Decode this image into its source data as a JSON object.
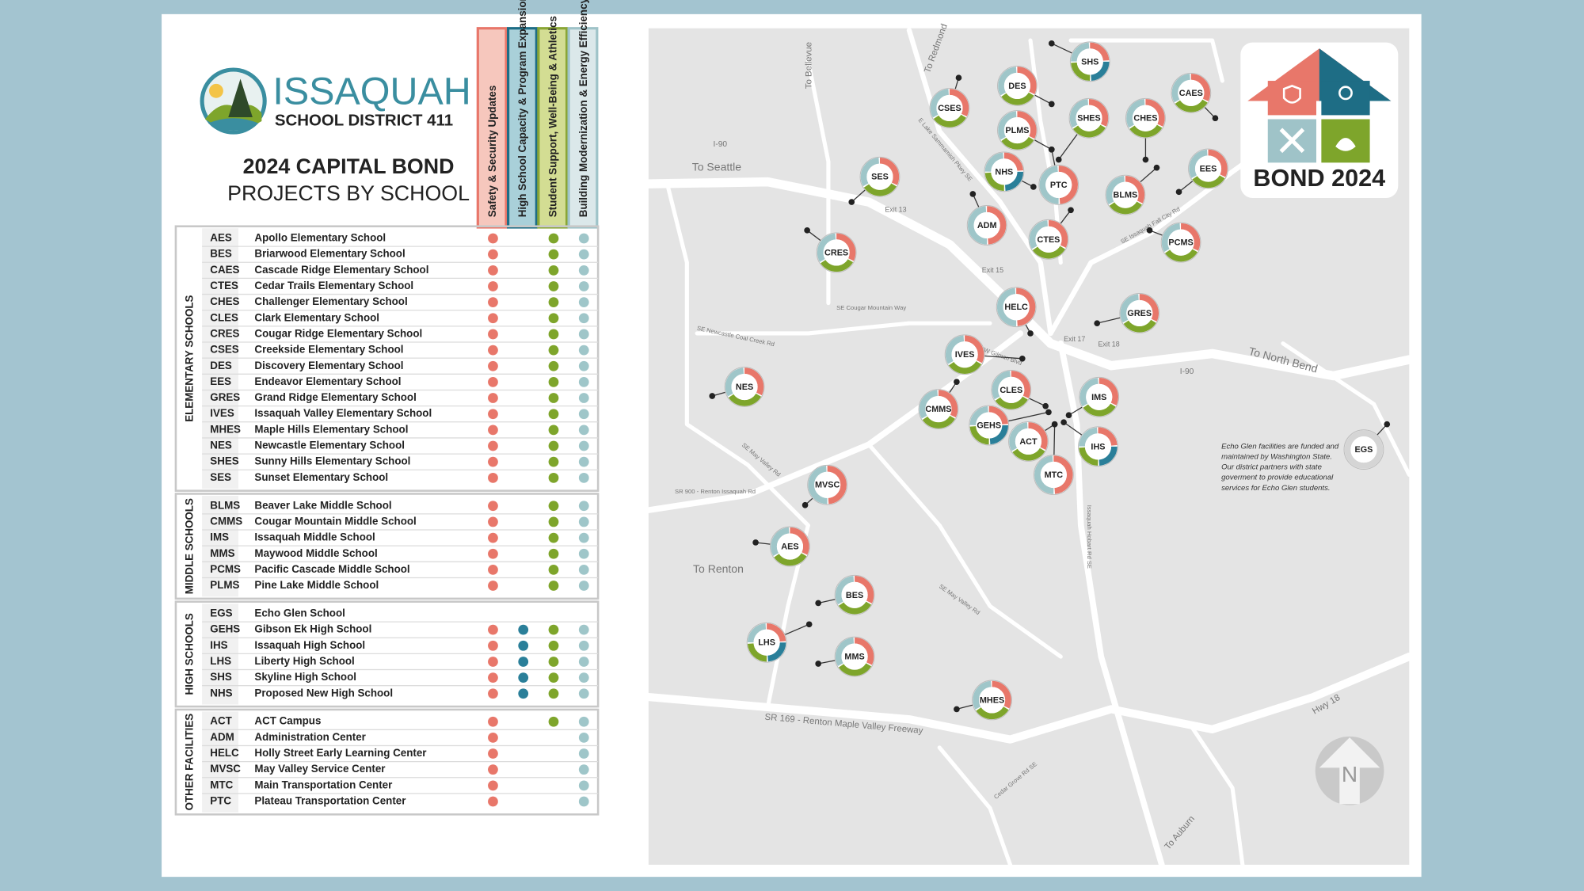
{
  "header": {
    "district": "ISSAQUAH",
    "subtitle": "SCHOOL DISTRICT 411",
    "title": "2024 CAPITAL BOND",
    "title2": "PROJECTS BY SCHOOL"
  },
  "table": {
    "columns": [
      "Safety & Security Updates",
      "High School Capacity & Program Expansion",
      "Student Support, Well-Being & Athletics",
      "Building Modernization & Energy Efficiency"
    ],
    "groups": [
      {
        "label": "ELEMENTARY SCHOOLS",
        "rows": [
          {
            "code": "AES",
            "name": "Apollo Elementary School",
            "projects": [
              true,
              false,
              true,
              true
            ]
          },
          {
            "code": "BES",
            "name": "Briarwood Elementary School",
            "projects": [
              true,
              false,
              true,
              true
            ]
          },
          {
            "code": "CAES",
            "name": "Cascade Ridge Elementary School",
            "projects": [
              true,
              false,
              true,
              true
            ]
          },
          {
            "code": "CTES",
            "name": "Cedar Trails Elementary School",
            "projects": [
              true,
              false,
              true,
              true
            ]
          },
          {
            "code": "CHES",
            "name": "Challenger Elementary School",
            "projects": [
              true,
              false,
              true,
              true
            ]
          },
          {
            "code": "CLES",
            "name": "Clark Elementary School",
            "projects": [
              true,
              false,
              true,
              true
            ]
          },
          {
            "code": "CRES",
            "name": "Cougar Ridge Elementary School",
            "projects": [
              true,
              false,
              true,
              true
            ]
          },
          {
            "code": "CSES",
            "name": "Creekside Elementary School",
            "projects": [
              true,
              false,
              true,
              true
            ]
          },
          {
            "code": "DES",
            "name": "Discovery Elementary School",
            "projects": [
              true,
              false,
              true,
              true
            ]
          },
          {
            "code": "EES",
            "name": "Endeavor Elementary School",
            "projects": [
              true,
              false,
              true,
              true
            ]
          },
          {
            "code": "GRES",
            "name": "Grand Ridge Elementary School",
            "projects": [
              true,
              false,
              true,
              true
            ]
          },
          {
            "code": "IVES",
            "name": "Issaquah Valley Elementary School",
            "projects": [
              true,
              false,
              true,
              true
            ]
          },
          {
            "code": "MHES",
            "name": "Maple Hills Elementary School",
            "projects": [
              true,
              false,
              true,
              true
            ]
          },
          {
            "code": "NES",
            "name": "Newcastle Elementary School",
            "projects": [
              true,
              false,
              true,
              true
            ]
          },
          {
            "code": "SHES",
            "name": "Sunny Hills Elementary School",
            "projects": [
              true,
              false,
              true,
              true
            ]
          },
          {
            "code": "SES",
            "name": "Sunset Elementary School",
            "projects": [
              true,
              false,
              true,
              true
            ]
          }
        ]
      },
      {
        "label": "MIDDLE SCHOOLS",
        "rows": [
          {
            "code": "BLMS",
            "name": "Beaver Lake Middle School",
            "projects": [
              true,
              false,
              true,
              true
            ]
          },
          {
            "code": "CMMS",
            "name": "Cougar Mountain Middle School",
            "projects": [
              true,
              false,
              true,
              true
            ]
          },
          {
            "code": "IMS",
            "name": "Issaquah Middle School",
            "projects": [
              true,
              false,
              true,
              true
            ]
          },
          {
            "code": "MMS",
            "name": "Maywood Middle School",
            "projects": [
              true,
              false,
              true,
              true
            ]
          },
          {
            "code": "PCMS",
            "name": "Pacific Cascade Middle School",
            "projects": [
              true,
              false,
              true,
              true
            ]
          },
          {
            "code": "PLMS",
            "name": "Pine Lake Middle School",
            "projects": [
              true,
              false,
              true,
              true
            ]
          }
        ]
      },
      {
        "label": "HIGH SCHOOLS",
        "rows": [
          {
            "code": "EGS",
            "name": "Echo Glen School",
            "projects": [
              false,
              false,
              false,
              false
            ]
          },
          {
            "code": "GEHS",
            "name": "Gibson Ek High School",
            "projects": [
              true,
              true,
              true,
              true
            ]
          },
          {
            "code": "IHS",
            "name": "Issaquah High School",
            "projects": [
              true,
              true,
              true,
              true
            ]
          },
          {
            "code": "LHS",
            "name": "Liberty High School",
            "projects": [
              true,
              true,
              true,
              true
            ]
          },
          {
            "code": "SHS",
            "name": "Skyline High School",
            "projects": [
              true,
              true,
              true,
              true
            ]
          },
          {
            "code": "NHS",
            "name": "Proposed New High School",
            "projects": [
              true,
              true,
              true,
              true
            ]
          }
        ]
      },
      {
        "label": "OTHER FACILITIES",
        "rows": [
          {
            "code": "ACT",
            "name": "ACT Campus",
            "projects": [
              true,
              false,
              true,
              true
            ]
          },
          {
            "code": "ADM",
            "name": "Administration Center",
            "projects": [
              true,
              false,
              false,
              true
            ]
          },
          {
            "code": "HELC",
            "name": "Holly Street Early Learning Center",
            "projects": [
              true,
              false,
              false,
              true
            ]
          },
          {
            "code": "MVSC",
            "name": "May Valley Service Center",
            "projects": [
              true,
              false,
              false,
              true
            ]
          },
          {
            "code": "MTC",
            "name": "Main Transportation Center",
            "projects": [
              true,
              false,
              false,
              true
            ]
          },
          {
            "code": "PTC",
            "name": "Plateau Transportation Center",
            "projects": [
              true,
              false,
              false,
              true
            ]
          }
        ]
      }
    ]
  },
  "map": {
    "badge": "BOND 2024",
    "compass": "N",
    "note": [
      "Echo Glen facilities are funded and",
      "maintained by Washington State.",
      "Our district partners with state",
      "goverment to provide educational",
      "services for Echo Glen students."
    ],
    "labels": [
      "To Seattle",
      "I-90",
      "To Bellevue",
      "To Redmond",
      "Exit 13",
      "Exit 15",
      "Exit 17",
      "Exit 18",
      "To North Bend",
      "I-90",
      "To Renton",
      "SR 169 - Renton Maple Valley Freeway",
      "Hwy 18",
      "To Auburn",
      "SE Cougar Mountain Way",
      "SE Newcastle Coal Creek Rd",
      "SE May Valley Rd",
      "SR 900 - Renton Issaquah Rd",
      "NW Gilman Blvd",
      "Issaquah Hobart Rd SE",
      "Cedar Grove Rd SE",
      "SE May Valley Rd",
      "SE Issaquah Fall City Rd",
      "E Lake Sammamish Pkwy SE"
    ],
    "markers": [
      "SHS",
      "CSES",
      "DES",
      "PLMS",
      "SHES",
      "CHES",
      "CAES",
      "NHS",
      "PTC",
      "EES",
      "BLMS",
      "SES",
      "ADM",
      "CTES",
      "PCMS",
      "CRES",
      "HELC",
      "GRES",
      "IVES",
      "NES",
      "CLES",
      "IMS",
      "CMMS",
      "GEHS",
      "ACT",
      "IHS",
      "MTC",
      "EGS",
      "MVSC",
      "AES",
      "BES",
      "LHS",
      "MMS",
      "MHES"
    ]
  }
}
